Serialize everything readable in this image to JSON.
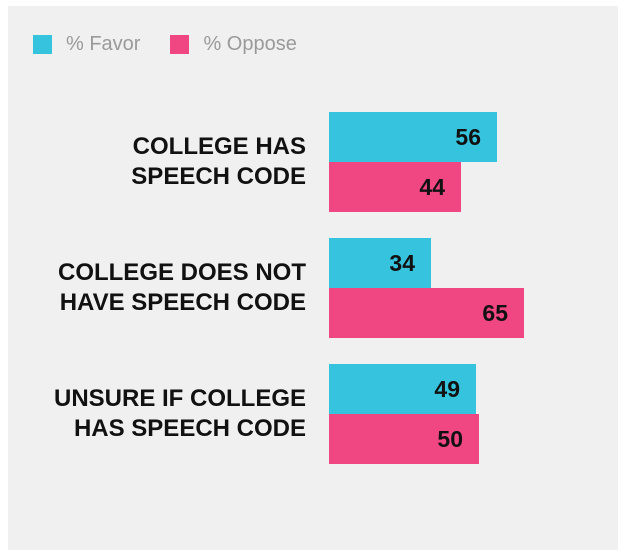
{
  "legend": {
    "favor_label": "% Favor",
    "oppose_label": "% Oppose"
  },
  "colors": {
    "favor": "#36c3de",
    "oppose": "#f04682",
    "panel_bg": "#f0f0f0"
  },
  "chart_data": {
    "type": "bar",
    "orientation": "horizontal",
    "categories": [
      [
        "COLLEGE HAS",
        "SPEECH CODE"
      ],
      [
        "COLLEGE DOES NOT",
        "HAVE SPEECH CODE"
      ],
      [
        "UNSURE IF COLLEGE",
        "HAS SPEECH CODE"
      ]
    ],
    "series": [
      {
        "name": "% Favor",
        "values": [
          56,
          34,
          49
        ]
      },
      {
        "name": "% Oppose",
        "values": [
          44,
          65,
          50
        ]
      }
    ],
    "xlim": [
      0,
      100
    ],
    "grid": false,
    "legend_position": "top-left"
  }
}
